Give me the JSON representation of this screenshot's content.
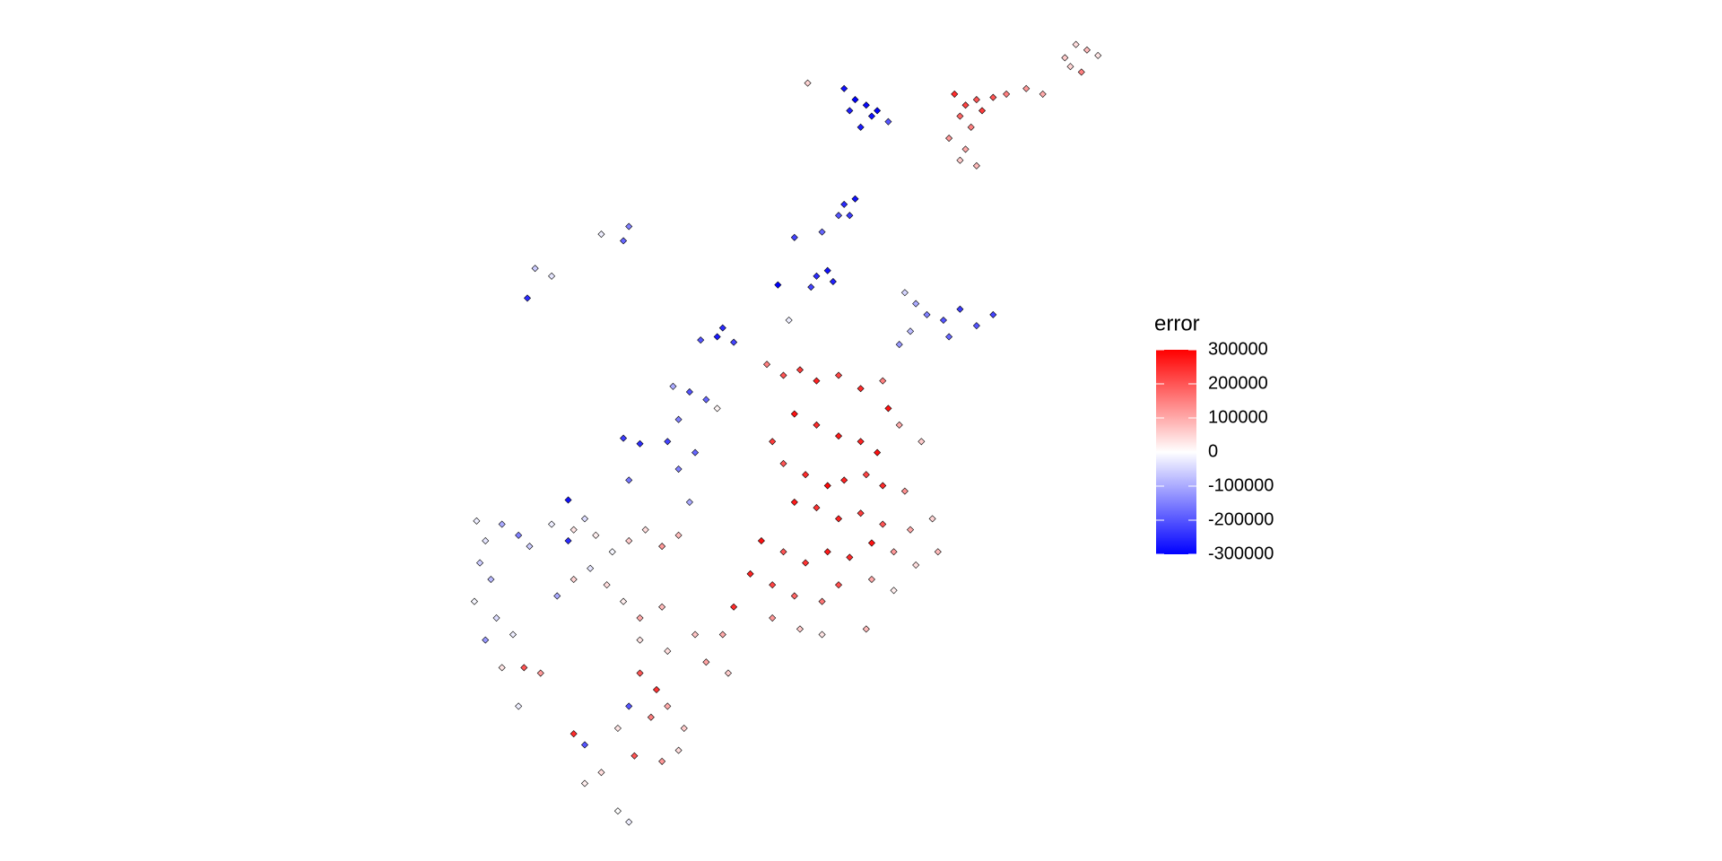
{
  "chart_data": {
    "type": "scatter",
    "x": [
      865,
      875,
      885,
      870,
      880,
      860,
      890,
      900,
      875,
      885,
      870,
      912,
      930,
      945,
      965,
      975,
      985,
      995,
      980,
      970,
      765,
      775,
      785,
      770,
      790,
      780,
      795,
      805,
      732,
      765,
      775,
      770,
      760,
      720,
      745,
      740,
      750,
      755,
      735,
      705,
      715,
      820,
      830,
      840,
      855,
      870,
      885,
      900,
      825,
      815,
      860,
      545,
      570,
      565,
      485,
      500,
      478,
      655,
      665,
      650,
      635,
      610,
      625,
      640,
      650,
      615,
      565,
      580,
      605,
      615,
      630,
      570,
      625,
      515,
      695,
      710,
      725,
      740,
      760,
      780,
      800,
      805,
      720,
      740,
      760,
      780,
      795,
      815,
      835,
      700,
      710,
      730,
      750,
      765,
      785,
      800,
      820,
      720,
      740,
      760,
      780,
      800,
      825,
      845,
      690,
      710,
      730,
      750,
      770,
      790,
      810,
      830,
      850,
      680,
      700,
      720,
      745,
      760,
      790,
      810,
      700,
      725,
      745,
      785,
      665,
      655,
      432,
      440,
      435,
      445,
      430,
      455,
      470,
      480,
      500,
      515,
      520,
      530,
      540,
      555,
      570,
      585,
      600,
      615,
      450,
      465,
      440,
      455,
      475,
      490,
      505,
      520,
      535,
      550,
      565,
      580,
      600,
      470,
      580,
      605,
      630,
      640,
      660,
      580,
      595,
      570,
      590,
      605,
      620,
      560,
      575,
      600,
      615,
      520,
      530,
      545,
      530,
      560,
      570
    ],
    "y": [
      85,
      95,
      90,
      105,
      115,
      125,
      100,
      88,
      135,
      150,
      145,
      85,
      80,
      85,
      52,
      40,
      45,
      50,
      65,
      60,
      80,
      90,
      95,
      100,
      105,
      115,
      100,
      110,
      75,
      185,
      180,
      195,
      195,
      215,
      210,
      250,
      245,
      255,
      260,
      258,
      290,
      265,
      275,
      285,
      290,
      280,
      295,
      285,
      300,
      312,
      305,
      212,
      205,
      218,
      243,
      250,
      270,
      297,
      310,
      305,
      308,
      350,
      355,
      362,
      370,
      380,
      397,
      402,
      400,
      425,
      410,
      435,
      455,
      453,
      330,
      340,
      335,
      345,
      340,
      352,
      345,
      370,
      375,
      385,
      395,
      400,
      410,
      385,
      400,
      400,
      420,
      430,
      440,
      435,
      430,
      440,
      445,
      455,
      460,
      470,
      465,
      475,
      480,
      470,
      490,
      500,
      510,
      500,
      505,
      492,
      500,
      512,
      500,
      520,
      530,
      540,
      545,
      530,
      525,
      535,
      560,
      570,
      575,
      570,
      550,
      575,
      472,
      490,
      510,
      525,
      545,
      475,
      485,
      495,
      475,
      490,
      480,
      470,
      485,
      500,
      490,
      480,
      495,
      485,
      560,
      575,
      580,
      605,
      605,
      610,
      540,
      525,
      515,
      530,
      545,
      560,
      550,
      640,
      580,
      590,
      575,
      600,
      610,
      610,
      625,
      640,
      650,
      640,
      660,
      660,
      685,
      690,
      680,
      665,
      675,
      700,
      710,
      735,
      745
    ],
    "values": [
      250000,
      220000,
      200000,
      180000,
      150000,
      120000,
      230000,
      200000,
      100000,
      80000,
      60000,
      150000,
      120000,
      100000,
      60000,
      40000,
      80000,
      30000,
      150000,
      50000,
      -280000,
      -300000,
      -290000,
      -260000,
      -280000,
      -270000,
      -300000,
      -200000,
      50000,
      -250000,
      -280000,
      -230000,
      -200000,
      -220000,
      -180000,
      -250000,
      -280000,
      -260000,
      -220000,
      -300000,
      -20000,
      -50000,
      -100000,
      -150000,
      -200000,
      -230000,
      -200000,
      -220000,
      -80000,
      -120000,
      -180000,
      -20000,
      -150000,
      -180000,
      -60000,
      -30000,
      -250000,
      -250000,
      -220000,
      -270000,
      -200000,
      -100000,
      -200000,
      -180000,
      10000,
      -150000,
      -230000,
      -250000,
      -220000,
      -150000,
      -180000,
      -160000,
      -100000,
      -280000,
      150000,
      200000,
      230000,
      260000,
      220000,
      250000,
      150000,
      280000,
      280000,
      250000,
      270000,
      260000,
      280000,
      100000,
      60000,
      230000,
      200000,
      250000,
      290000,
      260000,
      220000,
      250000,
      130000,
      270000,
      240000,
      260000,
      230000,
      200000,
      100000,
      50000,
      280000,
      200000,
      240000,
      270000,
      250000,
      280000,
      120000,
      40000,
      80000,
      260000,
      220000,
      180000,
      160000,
      210000,
      100000,
      20000,
      120000,
      60000,
      30000,
      80000,
      250000,
      100000,
      -20000,
      -30000,
      -60000,
      -80000,
      -10000,
      -100000,
      -150000,
      -60000,
      -20000,
      -250000,
      30000,
      -40000,
      20000,
      -10000,
      60000,
      40000,
      120000,
      80000,
      -40000,
      -20000,
      -120000,
      30000,
      200000,
      120000,
      -100000,
      50000,
      -30000,
      40000,
      20000,
      100000,
      80000,
      -20000,
      30000,
      40000,
      70000,
      110000,
      60000,
      200000,
      240000,
      -200000,
      150000,
      100000,
      60000,
      30000,
      200000,
      120000,
      40000,
      250000,
      -200000,
      40000,
      20000,
      0,
      -20000
    ],
    "xlim": [
      400,
      1020
    ],
    "ylim": [
      760,
      20
    ],
    "color_scale": {
      "title": "error",
      "lim": [
        -300000,
        300000
      ],
      "ticks": [
        300000,
        200000,
        100000,
        0,
        -100000,
        -200000,
        -300000
      ],
      "colors": [
        "#0000ff",
        "#ffffff",
        "#ff0000"
      ]
    }
  }
}
